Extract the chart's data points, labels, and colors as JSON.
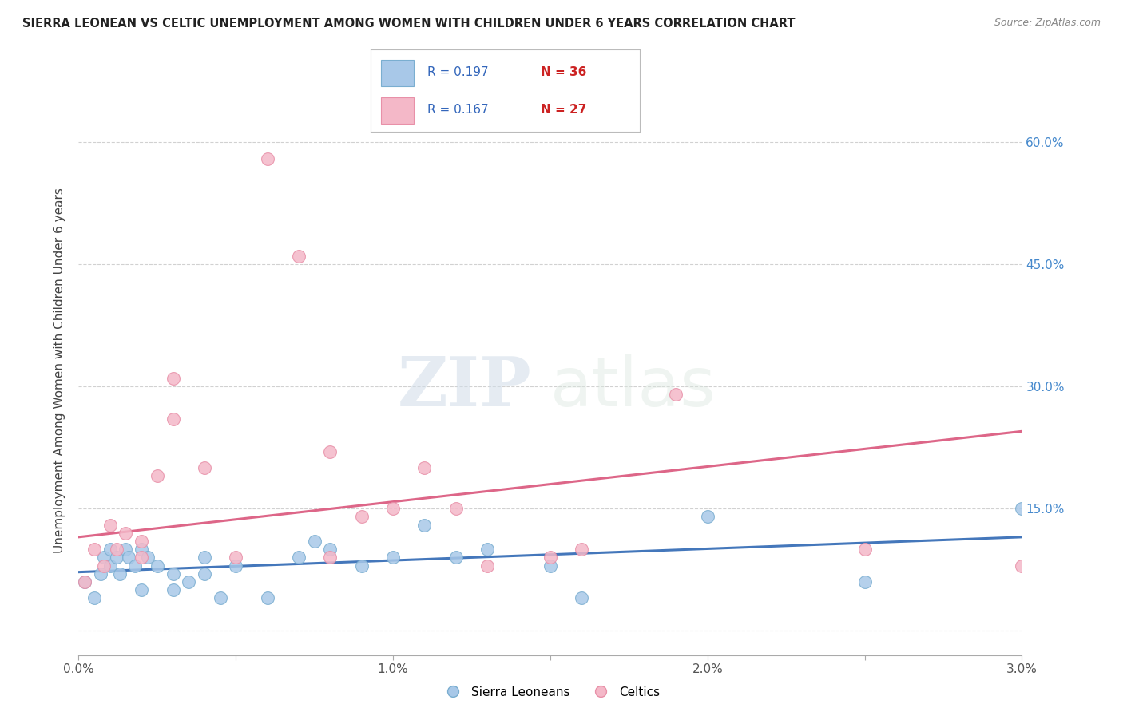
{
  "title": "SIERRA LEONEAN VS CELTIC UNEMPLOYMENT AMONG WOMEN WITH CHILDREN UNDER 6 YEARS CORRELATION CHART",
  "source": "Source: ZipAtlas.com",
  "ylabel": "Unemployment Among Women with Children Under 6 years",
  "xlim": [
    0.0,
    0.03
  ],
  "ylim": [
    -0.03,
    0.67
  ],
  "right_yticks": [
    0.0,
    0.15,
    0.3,
    0.45,
    0.6
  ],
  "right_yticklabels": [
    "",
    "15.0%",
    "30.0%",
    "45.0%",
    "60.0%"
  ],
  "xticks": [
    0.0,
    0.005,
    0.01,
    0.015,
    0.02,
    0.025,
    0.03
  ],
  "xticklabels": [
    "0.0%",
    "",
    "1.0%",
    "",
    "2.0%",
    "",
    "3.0%"
  ],
  "legend_blue_r": "R = 0.197",
  "legend_blue_n": "N = 36",
  "legend_pink_r": "R = 0.167",
  "legend_pink_n": "N = 27",
  "blue_scatter_color": "#a8c8e8",
  "blue_scatter_edge": "#7aaed0",
  "pink_scatter_color": "#f4b8c8",
  "pink_scatter_edge": "#e890a8",
  "blue_line_color": "#4477bb",
  "pink_line_color": "#dd6688",
  "watermark_zip": "ZIP",
  "watermark_atlas": "atlas",
  "sierra_x": [
    0.0002,
    0.0005,
    0.0007,
    0.0008,
    0.001,
    0.001,
    0.0012,
    0.0013,
    0.0015,
    0.0016,
    0.0018,
    0.002,
    0.002,
    0.0022,
    0.0025,
    0.003,
    0.003,
    0.0035,
    0.004,
    0.004,
    0.0045,
    0.005,
    0.006,
    0.007,
    0.0075,
    0.008,
    0.009,
    0.01,
    0.011,
    0.012,
    0.013,
    0.015,
    0.016,
    0.02,
    0.025,
    0.03
  ],
  "sierra_y": [
    0.06,
    0.04,
    0.07,
    0.09,
    0.1,
    0.08,
    0.09,
    0.07,
    0.1,
    0.09,
    0.08,
    0.05,
    0.1,
    0.09,
    0.08,
    0.07,
    0.05,
    0.06,
    0.09,
    0.07,
    0.04,
    0.08,
    0.04,
    0.09,
    0.11,
    0.1,
    0.08,
    0.09,
    0.13,
    0.09,
    0.1,
    0.08,
    0.04,
    0.14,
    0.06,
    0.15
  ],
  "celtic_x": [
    0.0002,
    0.0005,
    0.0008,
    0.001,
    0.0012,
    0.0015,
    0.002,
    0.002,
    0.0025,
    0.003,
    0.003,
    0.004,
    0.005,
    0.006,
    0.007,
    0.008,
    0.008,
    0.009,
    0.01,
    0.011,
    0.012,
    0.013,
    0.015,
    0.016,
    0.019,
    0.025,
    0.03
  ],
  "celtic_y": [
    0.06,
    0.1,
    0.08,
    0.13,
    0.1,
    0.12,
    0.09,
    0.11,
    0.19,
    0.31,
    0.26,
    0.2,
    0.09,
    0.58,
    0.46,
    0.22,
    0.09,
    0.14,
    0.15,
    0.2,
    0.15,
    0.08,
    0.09,
    0.1,
    0.29,
    0.1,
    0.08
  ],
  "blue_trend_x": [
    0.0,
    0.03
  ],
  "blue_trend_y": [
    0.072,
    0.115
  ],
  "pink_trend_x": [
    0.0,
    0.03
  ],
  "pink_trend_y": [
    0.115,
    0.245
  ]
}
